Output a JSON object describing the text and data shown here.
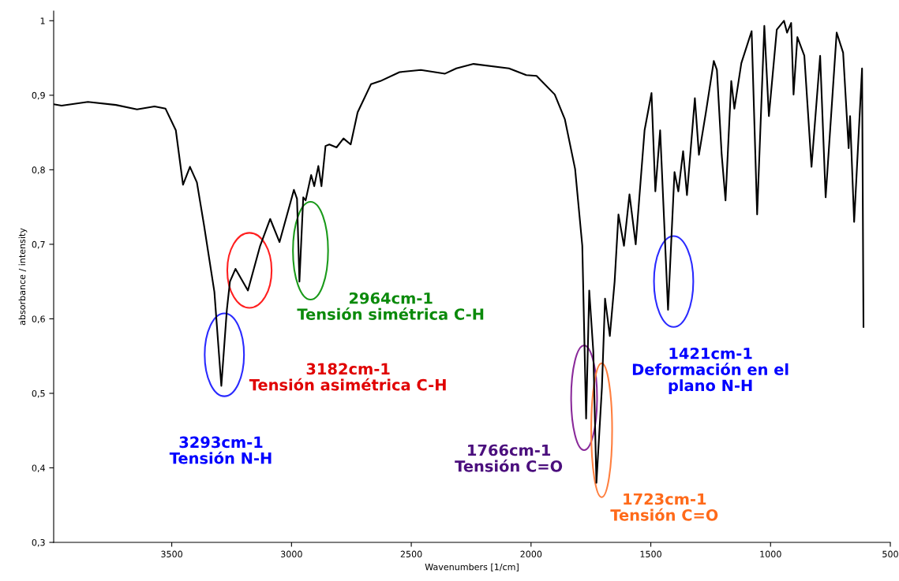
{
  "chart_data": {
    "type": "line",
    "xlabel": "Wavenumbers [1/cm]",
    "ylabel": "absorbance / intensity",
    "xlim": [
      3993,
      500
    ],
    "ylim": [
      0.3,
      1.013
    ],
    "xticks": [
      3500,
      3000,
      2500,
      2000,
      1500,
      1000,
      500
    ],
    "yticks": [
      {
        "value": 0.3,
        "label": "0,3"
      },
      {
        "value": 0.4,
        "label": "0,4"
      },
      {
        "value": 0.5,
        "label": "0,5"
      },
      {
        "value": 0.6,
        "label": "0,6"
      },
      {
        "value": 0.7,
        "label": "0,7"
      },
      {
        "value": 0.8,
        "label": "0,8"
      },
      {
        "value": 0.9,
        "label": "0,9"
      },
      {
        "value": 1,
        "label": "1"
      }
    ],
    "grid": false,
    "legend": false,
    "marker": "none",
    "line_style": "solid",
    "series": [
      {
        "color": "#000000",
        "x": [
          3993,
          3960,
          3850,
          3733,
          3645,
          3572,
          3526,
          3483,
          3453,
          3424,
          3395,
          3365,
          3322,
          3293,
          3270,
          3257,
          3234,
          3182,
          3131,
          3089,
          3050,
          2990,
          2977,
          2967,
          2951,
          2941,
          2918,
          2905,
          2888,
          2875,
          2858,
          2842,
          2812,
          2783,
          2753,
          2724,
          2668,
          2629,
          2549,
          2460,
          2359,
          2312,
          2240,
          2092,
          2020,
          1977,
          1901,
          1859,
          1816,
          1786,
          1770,
          1757,
          1740,
          1727,
          1704,
          1691,
          1671,
          1651,
          1635,
          1612,
          1589,
          1563,
          1526,
          1497,
          1481,
          1461,
          1428,
          1401,
          1385,
          1365,
          1349,
          1316,
          1299,
          1270,
          1237,
          1224,
          1204,
          1188,
          1164,
          1151,
          1122,
          1079,
          1056,
          1026,
          1007,
          974,
          944,
          931,
          914,
          904,
          888,
          859,
          829,
          793,
          770,
          724,
          697,
          674,
          668,
          651,
          618,
          612
        ],
        "values": [
          0.888,
          0.886,
          0.891,
          0.887,
          0.881,
          0.885,
          0.882,
          0.853,
          0.78,
          0.804,
          0.783,
          0.725,
          0.636,
          0.51,
          0.612,
          0.65,
          0.667,
          0.638,
          0.698,
          0.734,
          0.703,
          0.773,
          0.761,
          0.65,
          0.763,
          0.759,
          0.793,
          0.778,
          0.805,
          0.778,
          0.832,
          0.834,
          0.83,
          0.842,
          0.834,
          0.877,
          0.915,
          0.919,
          0.931,
          0.934,
          0.929,
          0.936,
          0.942,
          0.936,
          0.927,
          0.926,
          0.901,
          0.868,
          0.801,
          0.698,
          0.466,
          0.638,
          0.556,
          0.38,
          0.508,
          0.627,
          0.577,
          0.65,
          0.74,
          0.698,
          0.767,
          0.7,
          0.853,
          0.903,
          0.771,
          0.853,
          0.612,
          0.797,
          0.771,
          0.825,
          0.766,
          0.896,
          0.82,
          0.877,
          0.946,
          0.934,
          0.82,
          0.759,
          0.919,
          0.882,
          0.943,
          0.986,
          0.74,
          0.993,
          0.872,
          0.988,
          1.0,
          0.984,
          0.997,
          0.901,
          0.978,
          0.953,
          0.804,
          0.953,
          0.763,
          0.984,
          0.957,
          0.829,
          0.872,
          0.73,
          0.936,
          0.589
        ]
      }
    ],
    "annotations": [
      "3293cm-1\nTensión N-H",
      "3182cm-1\nTensión asimétrica C-H",
      "2964cm-1\nTensión simétrica C-H",
      "1766cm-1\nTensión C=O",
      "1723cm-1\nTensión C=O",
      "1421cm-1\nDeformación en el\nplano N-H"
    ]
  }
}
